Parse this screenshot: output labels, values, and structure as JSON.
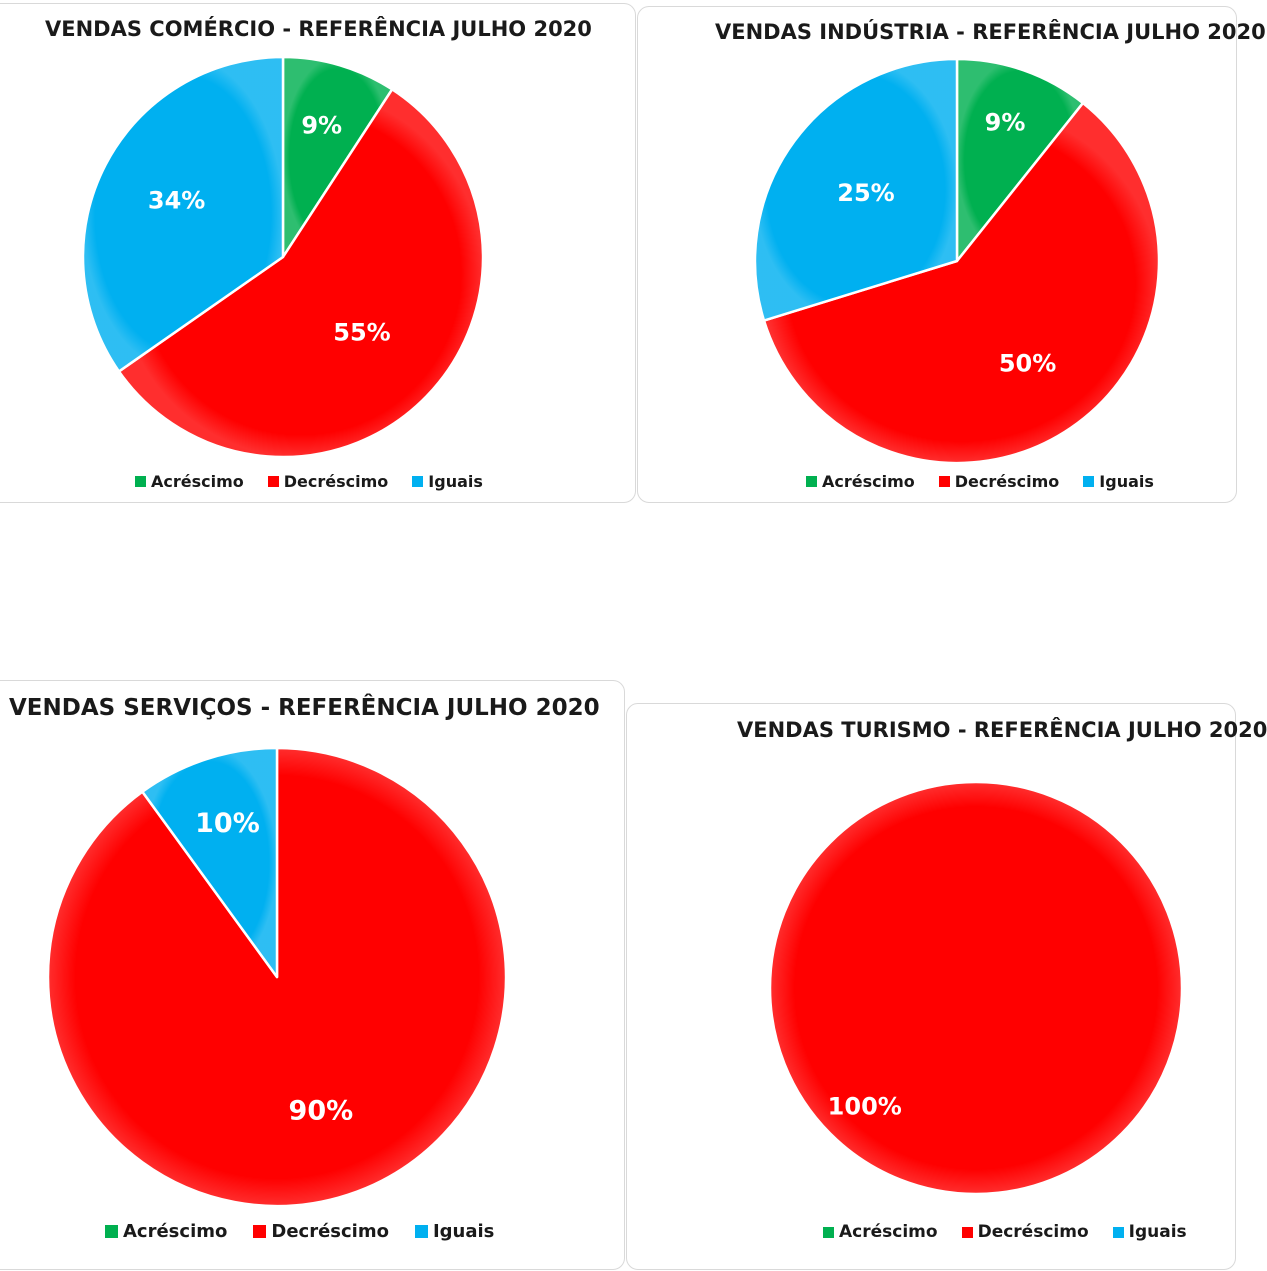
{
  "colors": {
    "acrescimo": "#00b050",
    "decrescimo": "#ff0000",
    "iguais": "#00b0f0"
  },
  "chart_data": [
    {
      "type": "pie",
      "title": "VENDAS COMÉRCIO - REFERÊNCIA JULHO 2020",
      "categories": [
        "Acréscimo",
        "Decréscimo",
        "Iguais"
      ],
      "values": [
        9,
        55,
        34
      ],
      "labels": [
        "9%",
        "55%",
        "34%"
      ],
      "legend_position": "bottom"
    },
    {
      "type": "pie",
      "title": "VENDAS INDÚSTRIA - REFERÊNCIA JULHO 2020",
      "categories": [
        "Acréscimo",
        "Decréscimo",
        "Iguais"
      ],
      "values": [
        9,
        50,
        25
      ],
      "labels": [
        "9%",
        "50%",
        "25%"
      ],
      "legend_position": "bottom"
    },
    {
      "type": "pie",
      "title": "VENDAS SERVIÇOS - REFERÊNCIA JULHO 2020",
      "categories": [
        "Acréscimo",
        "Decréscimo",
        "Iguais"
      ],
      "values": [
        0,
        90,
        10
      ],
      "labels": [
        "",
        "90%",
        "10%"
      ],
      "legend_position": "bottom"
    },
    {
      "type": "pie",
      "title": "VENDAS TURISMO - REFERÊNCIA JULHO 2020",
      "categories": [
        "Acréscimo",
        "Decréscimo",
        "Iguais"
      ],
      "values": [
        0,
        100,
        0
      ],
      "labels": [
        "",
        "100%",
        ""
      ],
      "legend_position": "bottom"
    }
  ]
}
